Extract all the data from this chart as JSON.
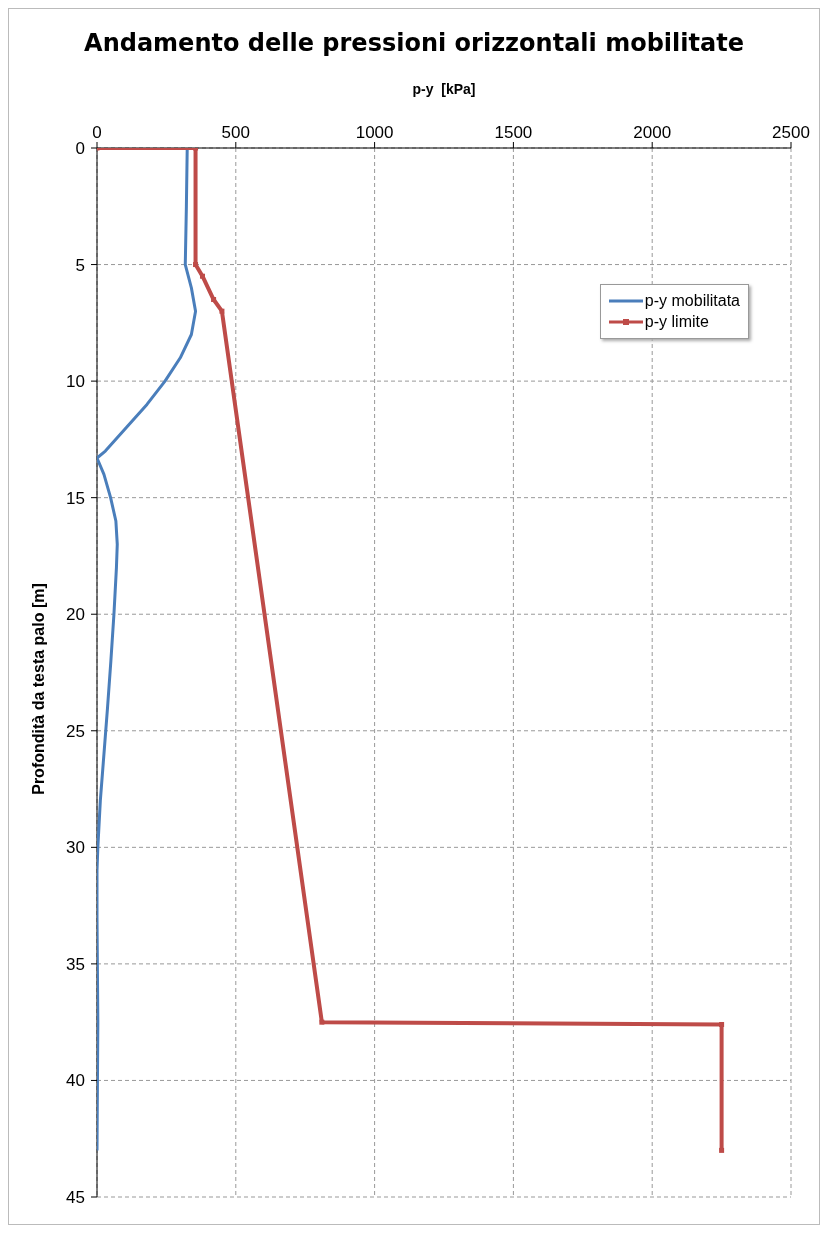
{
  "chart_data": {
    "type": "line",
    "title": "Andamento delle pressioni orizzontali mobilitate",
    "xlabel": "p-y  [kPa]",
    "ylabel": "Profondità da testa palo [m]",
    "xlim": [
      0,
      2500
    ],
    "xticks": [
      0,
      500,
      1000,
      1500,
      2000,
      2500
    ],
    "ylim": [
      45,
      0
    ],
    "yticks": [
      0,
      5,
      10,
      15,
      20,
      25,
      30,
      35,
      40,
      45
    ],
    "grid": true,
    "legend": "top right",
    "line_style": "solid",
    "series": [
      {
        "name": "p-y mobilitata",
        "color": "#4a7ebb",
        "marker": "none",
        "x": [
          325,
          322,
          318,
          340,
          355,
          340,
          300,
          245,
          180,
          105,
          30,
          0,
          25,
          49,
          68,
          73,
          70,
          61,
          50,
          38,
          25,
          12,
          3,
          0,
          0,
          3,
          0
        ],
        "values": [
          0,
          2.5,
          5,
          6,
          7,
          8,
          9,
          10,
          11,
          12,
          13,
          13.3,
          14,
          15,
          16,
          17,
          18,
          20,
          22,
          24,
          26,
          28,
          30,
          31,
          33,
          37.5,
          43
        ]
      },
      {
        "name": "p-y limite",
        "color": "#be4b48",
        "marker": "square",
        "x": [
          0,
          355,
          355,
          380,
          420,
          450,
          810,
          2250,
          2250
        ],
        "values": [
          0,
          0,
          5,
          5.5,
          6.5,
          7,
          37.5,
          37.6,
          43
        ]
      }
    ]
  }
}
